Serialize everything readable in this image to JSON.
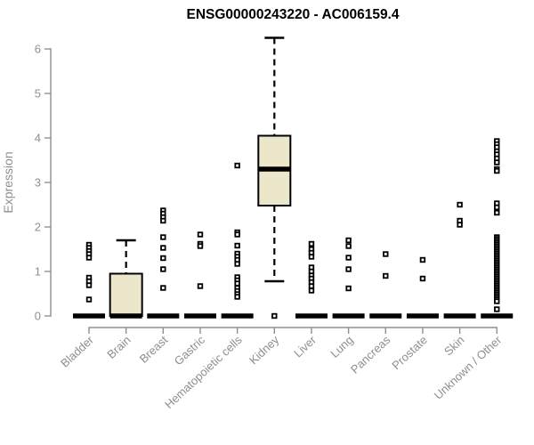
{
  "chart_data": {
    "type": "boxplot",
    "title": "ENSG00000243220 - AC006159.4",
    "ylabel": "Expression",
    "xlabel": "",
    "ylim": [
      0,
      6
    ],
    "yticks": [
      0,
      1,
      2,
      3,
      4,
      5,
      6
    ],
    "grid": false,
    "legend": null,
    "categories": [
      "Bladder",
      "Brain",
      "Breast",
      "Gastric",
      "Hematopoietic cells",
      "Kidney",
      "Liver",
      "Lung",
      "Pancreas",
      "Prostate",
      "Skin",
      "Unknown / Other"
    ],
    "series": [
      {
        "category": "Bladder",
        "box": {
          "whisker_low": 0,
          "q1": 0,
          "median": 0,
          "q3": 0,
          "whisker_high": 0
        },
        "outliers": [
          1.6,
          1.53,
          1.46,
          1.39,
          1.31,
          0.86,
          0.78,
          0.69,
          0.37
        ]
      },
      {
        "category": "Brain",
        "box": {
          "whisker_low": 0,
          "q1": 0,
          "median": 0,
          "q3": 0.95,
          "whisker_high": 1.7
        },
        "outliers": []
      },
      {
        "category": "Breast",
        "box": {
          "whisker_low": 0,
          "q1": 0,
          "median": 0,
          "q3": 0,
          "whisker_high": 0
        },
        "outliers": [
          2.37,
          2.3,
          2.22,
          2.14,
          1.77,
          1.53,
          1.3,
          1.05,
          0.63
        ]
      },
      {
        "category": "Gastric",
        "box": {
          "whisker_low": 0,
          "q1": 0,
          "median": 0,
          "q3": 0,
          "whisker_high": 0
        },
        "outliers": [
          1.83,
          1.62,
          1.57,
          0.67
        ]
      },
      {
        "category": "Hematopoietic cells",
        "box": {
          "whisker_low": 0,
          "q1": 0,
          "median": 0,
          "q3": 0,
          "whisker_high": 0
        },
        "outliers": [
          3.38,
          1.88,
          1.83,
          1.58,
          1.4,
          1.33,
          1.26,
          1.17,
          0.87,
          0.8,
          0.73,
          0.63,
          0.56,
          0.49,
          0.43
        ]
      },
      {
        "category": "Kidney",
        "box": {
          "whisker_low": 0.78,
          "q1": 2.48,
          "median": 3.3,
          "q3": 4.05,
          "whisker_high": 6.25
        },
        "outliers": [
          0
        ]
      },
      {
        "category": "Liver",
        "box": {
          "whisker_low": 0,
          "q1": 0,
          "median": 0,
          "q3": 0,
          "whisker_high": 0
        },
        "outliers": [
          1.62,
          1.5,
          1.42,
          1.33,
          1.09,
          1.0,
          0.91,
          0.84,
          0.76,
          0.67,
          0.57
        ]
      },
      {
        "category": "Lung",
        "box": {
          "whisker_low": 0,
          "q1": 0,
          "median": 0,
          "q3": 0,
          "whisker_high": 0
        },
        "outliers": [
          1.7,
          1.57,
          1.31,
          1.05,
          0.62
        ]
      },
      {
        "category": "Pancreas",
        "box": {
          "whisker_low": 0,
          "q1": 0,
          "median": 0,
          "q3": 0,
          "whisker_high": 0
        },
        "outliers": [
          1.39,
          0.9
        ]
      },
      {
        "category": "Prostate",
        "box": {
          "whisker_low": 0,
          "q1": 0,
          "median": 0,
          "q3": 0,
          "whisker_high": 0
        },
        "outliers": [
          1.26,
          0.84
        ]
      },
      {
        "category": "Skin",
        "box": {
          "whisker_low": 0,
          "q1": 0,
          "median": 0,
          "q3": 0,
          "whisker_high": 0
        },
        "outliers": [
          2.5,
          2.14,
          2.05
        ]
      },
      {
        "category": "Unknown / Other",
        "box": {
          "whisker_low": 0,
          "q1": 0,
          "median": 0,
          "q3": 0,
          "whisker_high": 0
        },
        "outliers": [
          3.93,
          3.86,
          3.79,
          3.7,
          3.63,
          3.54,
          3.45,
          3.3,
          3.26,
          2.53,
          2.44,
          2.32,
          1.77,
          1.73,
          1.69,
          1.65,
          1.61,
          1.57,
          1.53,
          1.49,
          1.45,
          1.41,
          1.37,
          1.33,
          1.29,
          1.25,
          1.21,
          1.17,
          1.13,
          1.09,
          1.05,
          1.01,
          0.97,
          0.93,
          0.89,
          0.85,
          0.81,
          0.77,
          0.73,
          0.69,
          0.65,
          0.61,
          0.57,
          0.53,
          0.49,
          0.45,
          0.41,
          0.37,
          0.33,
          0.15
        ]
      }
    ],
    "colors": {
      "box_fill": "#ece7cb",
      "ink": "#000000",
      "axis": "#8f8f8f",
      "label_text": "#8f8f8f",
      "title_text": "#000000",
      "background": "#ffffff"
    }
  }
}
